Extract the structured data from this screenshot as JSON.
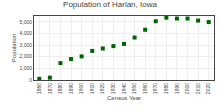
{
  "chart_data": {
    "type": "scatter",
    "title": "Population of Harlan, Iowa",
    "xlabel": "Census Year",
    "ylabel": "Population",
    "x": [
      1860,
      1870,
      1880,
      1890,
      1900,
      1910,
      1920,
      1930,
      1940,
      1950,
      1960,
      1970,
      1980,
      1990,
      2000,
      2010,
      2020
    ],
    "values": [
      100,
      200,
      1452,
      1801,
      2029,
      2498,
      2708,
      2914,
      3101,
      3649,
      4316,
      5049,
      5357,
      5282,
      5282,
      5106,
      4979
    ],
    "color": "#006400",
    "marker": "square",
    "xlim": [
      1855,
      2025
    ],
    "xticks": [
      1860,
      1870,
      1880,
      1890,
      1900,
      1910,
      1920,
      1930,
      1940,
      1950,
      1960,
      1970,
      1980,
      1990,
      2000,
      2010,
      2020
    ],
    "ylim": [
      0,
      5500
    ],
    "yticks": [
      0,
      {
        "value": 1000,
        "label": "1,000"
      },
      {
        "value": 2000,
        "label": "2,000"
      },
      {
        "value": 3000,
        "label": "3,000"
      },
      {
        "value": 4000,
        "label": "4,000"
      },
      {
        "value": 5000,
        "label": "5,000"
      }
    ],
    "grid": true
  }
}
